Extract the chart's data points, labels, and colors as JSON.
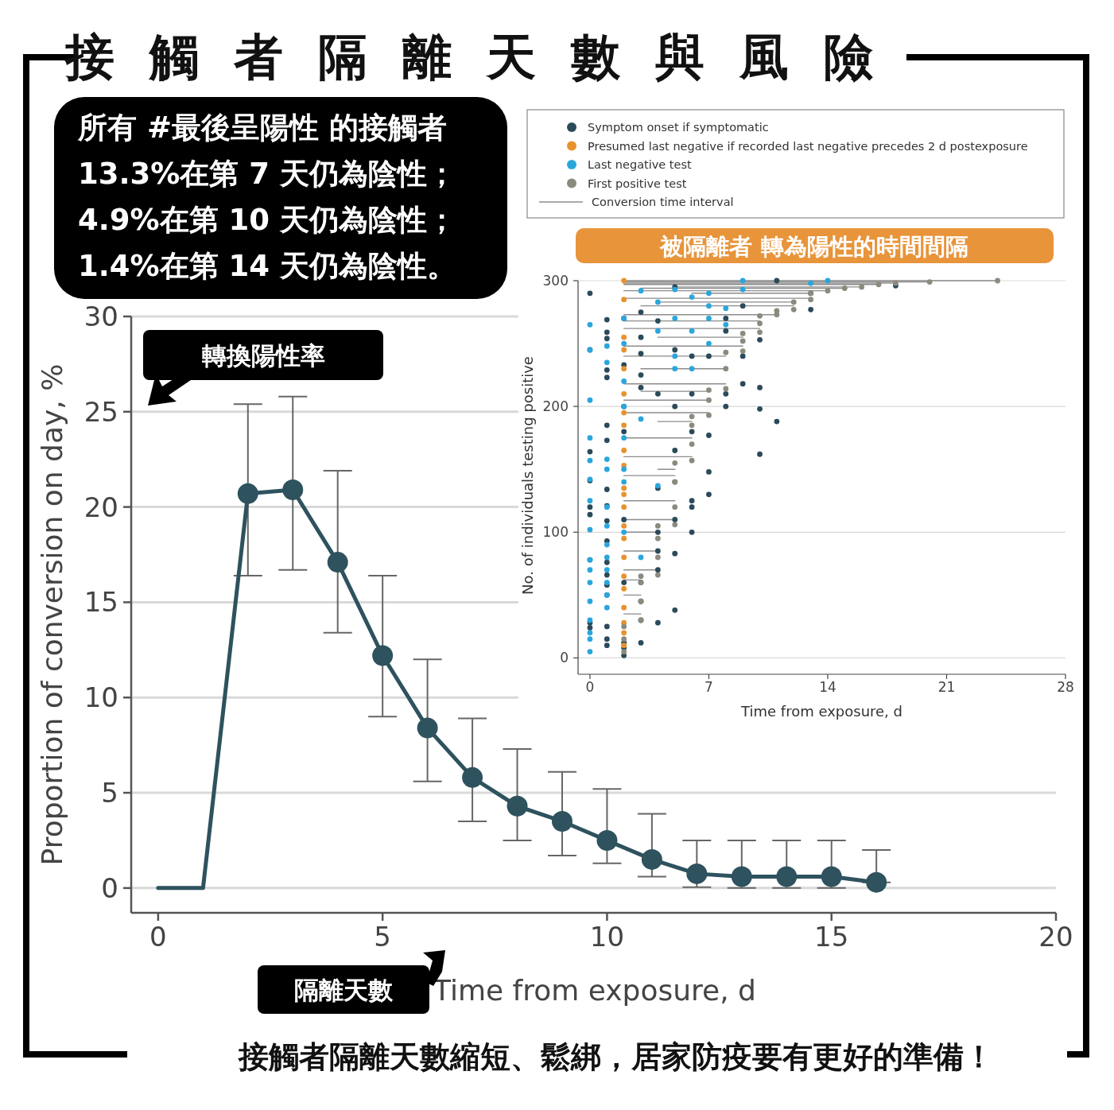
{
  "chart_data": [
    {
      "type": "line",
      "title": "接觸者隔離天數與風險",
      "xlabel": "Time from exposure, d",
      "ylabel": "Proportion of conversion on day, %",
      "color": "#2e525e",
      "marker": "circle",
      "grid": "y",
      "xlim": [
        -0.6,
        20
      ],
      "ylim": [
        -1.3,
        30
      ],
      "xticks": [
        0,
        5,
        10,
        15,
        20
      ],
      "yticks": [
        0,
        5,
        10,
        15,
        20,
        25,
        30
      ],
      "x": [
        0,
        1,
        2,
        3,
        4,
        5,
        6,
        7,
        8,
        9,
        10,
        11,
        12,
        13,
        14,
        15,
        16
      ],
      "values": [
        0,
        0,
        20.7,
        20.9,
        17.1,
        12.2,
        8.4,
        5.8,
        4.3,
        3.5,
        2.5,
        1.5,
        0.75,
        0.6,
        0.6,
        0.6,
        0.3
      ],
      "errors": [
        null,
        null,
        [
          16.4,
          25.4
        ],
        [
          16.7,
          25.8
        ],
        [
          13.4,
          21.9
        ],
        [
          9.0,
          16.4
        ],
        [
          5.6,
          12.0
        ],
        [
          3.5,
          8.9
        ],
        [
          2.5,
          7.3
        ],
        [
          1.7,
          6.1
        ],
        [
          1.3,
          5.2
        ],
        [
          0.6,
          3.9
        ],
        [
          0.05,
          2.5
        ],
        [
          0,
          2.5
        ],
        [
          0,
          2.5
        ],
        [
          0,
          2.5
        ],
        [
          0.3,
          2.0
        ]
      ],
      "annotations": [
        "所有 #最後呈陽性 的接觸者",
        "13.3%在第 7 天仍為陰性；",
        "4.9%在第 10 天仍為陰性；",
        "1.4%在第 14 天仍為陰性。",
        "轉換陽性率",
        "隔離天數",
        "接觸者隔離天數縮短、鬆綁，居家防疫要有更好的準備！"
      ]
    },
    {
      "type": "scatter",
      "title": "被隔離者 轉為陽性的時間間隔",
      "xlabel": "Time from exposure, d",
      "ylabel": "No. of individuals testing positive",
      "grid": "y",
      "legend": "top",
      "xlim": [
        -0.7,
        28
      ],
      "ylim": [
        -13,
        300
      ],
      "xticks": [
        0,
        7,
        14,
        21,
        28
      ],
      "yticks": [
        0,
        100,
        200,
        300
      ],
      "series": [
        {
          "name": "Symptom onset if symptomatic",
          "color": "#2b4a5a",
          "marker": "circle",
          "x": [
            0,
            0,
            0,
            0,
            0,
            0,
            0,
            0,
            0,
            1,
            1,
            1,
            1,
            1,
            1,
            1,
            1,
            1,
            1,
            1,
            1,
            1,
            1,
            1,
            1,
            1,
            1,
            2,
            2,
            2,
            2,
            2,
            2,
            2,
            2,
            2,
            3,
            3,
            3,
            3,
            3,
            3,
            3,
            3,
            3,
            4,
            4,
            4,
            4,
            4,
            4,
            4,
            5,
            5,
            5,
            5,
            5,
            5,
            5,
            5,
            6,
            6,
            6,
            6,
            6,
            6,
            7,
            7,
            7,
            7,
            8,
            8,
            8,
            8,
            9,
            9,
            9,
            10,
            10,
            10,
            10,
            11,
            11,
            13,
            13,
            18
          ],
          "values": [
            290,
            245,
            164,
            141,
            120,
            114,
            78,
            28,
            24,
            269,
            259,
            254,
            229,
            223,
            185,
            173,
            134,
            121,
            109,
            93,
            76,
            66,
            58,
            50,
            25,
            15,
            10,
            2,
            8,
            12,
            60,
            110,
            180,
            200,
            233,
            270,
            12,
            30,
            45,
            60,
            215,
            225,
            242,
            255,
            275,
            28,
            70,
            85,
            100,
            135,
            210,
            268,
            38,
            83,
            110,
            140,
            165,
            200,
            245,
            295,
            100,
            120,
            125,
            180,
            210,
            240,
            130,
            148,
            177,
            240,
            200,
            210,
            260,
            270,
            218,
            240,
            280,
            162,
            198,
            215,
            253,
            188,
            300,
            277,
            290,
            296
          ]
        },
        {
          "name": "Presumed last negative if recorded last negative precedes 2 d postexposure",
          "color": "#e8922e",
          "marker": "circle",
          "x": [
            2,
            2,
            2,
            2,
            2,
            2,
            2,
            2,
            2,
            2,
            2,
            2,
            2,
            2,
            2,
            2,
            2,
            2,
            2,
            2,
            2,
            2
          ],
          "values": [
            10,
            20,
            28,
            40,
            55,
            65,
            80,
            95,
            105,
            120,
            130,
            135,
            153,
            165,
            185,
            195,
            210,
            230,
            245,
            255,
            285,
            300
          ]
        },
        {
          "name": "Last negative test",
          "color": "#2aa6dc",
          "marker": "circle",
          "x": [
            0,
            0,
            0,
            0,
            0,
            0,
            0,
            0,
            0,
            0,
            0,
            0,
            0,
            0,
            0,
            0,
            1,
            1,
            1,
            1,
            1,
            1,
            1,
            1,
            1,
            1,
            1,
            1,
            2,
            2,
            2,
            2,
            2,
            2,
            2,
            2,
            3,
            3,
            3,
            4,
            4,
            4,
            5,
            5,
            5,
            5,
            6,
            6,
            6,
            7,
            7,
            7,
            7,
            8,
            8,
            9,
            9,
            13,
            14
          ],
          "values": [
            5,
            15,
            20,
            30,
            45,
            60,
            70,
            78,
            102,
            125,
            142,
            157,
            175,
            205,
            245,
            265,
            40,
            50,
            60,
            70,
            80,
            90,
            105,
            120,
            150,
            158,
            235,
            248,
            100,
            140,
            150,
            175,
            200,
            220,
            250,
            270,
            80,
            190,
            292,
            137,
            260,
            283,
            230,
            240,
            270,
            293,
            230,
            260,
            287,
            250,
            270,
            280,
            290,
            265,
            278,
            293,
            300,
            298,
            300
          ]
        },
        {
          "name": "First positive test",
          "color": "#8c8a7e",
          "marker": "circle",
          "x": [
            2,
            2,
            2,
            3,
            3,
            3,
            3,
            4,
            4,
            4,
            4,
            5,
            5,
            5,
            5,
            6,
            6,
            6,
            6,
            7,
            7,
            7,
            8,
            8,
            8,
            9,
            9,
            9,
            10,
            10,
            10,
            11,
            11,
            12,
            12,
            13,
            13,
            14,
            15,
            16,
            17,
            18,
            20,
            24
          ],
          "values": [
            5,
            15,
            25,
            30,
            45,
            60,
            65,
            66,
            80,
            95,
            105,
            106,
            120,
            140,
            155,
            157,
            170,
            185,
            192,
            193,
            205,
            213,
            214,
            230,
            243,
            244,
            252,
            258,
            259,
            266,
            272,
            273,
            276,
            277,
            283,
            285,
            290,
            292,
            294,
            295,
            297,
            298,
            299,
            300
          ]
        },
        {
          "name": "Conversion time interval",
          "type": "line",
          "color": "#8c8c8c",
          "x": [
            2,
            3
          ],
          "values": [
            35,
            35
          ]
        },
        {
          "type": "line",
          "color": "#8c8c8c",
          "x": [
            2,
            3
          ],
          "values": [
            50,
            50
          ]
        },
        {
          "type": "line",
          "color": "#8c8c8c",
          "x": [
            2,
            3
          ],
          "values": [
            62,
            62
          ]
        },
        {
          "type": "line",
          "color": "#8c8c8c",
          "x": [
            2,
            4
          ],
          "values": [
            70,
            70
          ]
        },
        {
          "type": "line",
          "color": "#8c8c8c",
          "x": [
            2,
            4
          ],
          "values": [
            85,
            85
          ]
        },
        {
          "type": "line",
          "color": "#8c8c8c",
          "x": [
            2,
            4
          ],
          "values": [
            100,
            100
          ]
        },
        {
          "type": "line",
          "color": "#8c8c8c",
          "x": [
            2,
            5
          ],
          "values": [
            110,
            110
          ]
        },
        {
          "type": "line",
          "color": "#8c8c8c",
          "x": [
            2,
            5
          ],
          "values": [
            125,
            125
          ]
        },
        {
          "type": "line",
          "color": "#8c8c8c",
          "x": [
            2,
            5
          ],
          "values": [
            145,
            145
          ]
        },
        {
          "type": "line",
          "color": "#8c8c8c",
          "x": [
            4,
            5
          ],
          "values": [
            150,
            150
          ]
        },
        {
          "type": "line",
          "color": "#8c8c8c",
          "x": [
            2,
            6
          ],
          "values": [
            160,
            160
          ]
        },
        {
          "type": "line",
          "color": "#8c8c8c",
          "x": [
            2,
            6
          ],
          "values": [
            175,
            175
          ]
        },
        {
          "type": "line",
          "color": "#8c8c8c",
          "x": [
            4,
            6
          ],
          "values": [
            188,
            188
          ]
        },
        {
          "type": "line",
          "color": "#8c8c8c",
          "x": [
            2,
            7
          ],
          "values": [
            195,
            195
          ]
        },
        {
          "type": "line",
          "color": "#8c8c8c",
          "x": [
            2,
            7
          ],
          "values": [
            205,
            205
          ]
        },
        {
          "type": "line",
          "color": "#8c8c8c",
          "x": [
            3,
            7
          ],
          "values": [
            212,
            212
          ]
        },
        {
          "type": "line",
          "color": "#8c8c8c",
          "x": [
            2,
            8
          ],
          "values": [
            218,
            218
          ]
        },
        {
          "type": "line",
          "color": "#8c8c8c",
          "x": [
            3,
            8
          ],
          "values": [
            230,
            230
          ]
        },
        {
          "type": "line",
          "color": "#8c8c8c",
          "x": [
            2,
            8
          ],
          "values": [
            240,
            240
          ]
        },
        {
          "type": "line",
          "color": "#8c8c8c",
          "x": [
            2,
            9
          ],
          "values": [
            248,
            248
          ]
        },
        {
          "type": "line",
          "color": "#8c8c8c",
          "x": [
            4,
            9
          ],
          "values": [
            255,
            255
          ]
        },
        {
          "type": "line",
          "color": "#8c8c8c",
          "x": [
            2,
            10
          ],
          "values": [
            262,
            262
          ]
        },
        {
          "type": "line",
          "color": "#8c8c8c",
          "x": [
            2,
            10
          ],
          "values": [
            268,
            268
          ]
        },
        {
          "type": "line",
          "color": "#8c8c8c",
          "x": [
            2,
            11
          ],
          "values": [
            273,
            273
          ]
        },
        {
          "type": "line",
          "color": "#8c8c8c",
          "x": [
            3,
            12
          ],
          "values": [
            280,
            280
          ]
        },
        {
          "type": "line",
          "color": "#8c8c8c",
          "x": [
            4,
            12
          ],
          "values": [
            283,
            283
          ]
        },
        {
          "type": "line",
          "color": "#8c8c8c",
          "x": [
            2,
            13
          ],
          "values": [
            286,
            286
          ]
        },
        {
          "type": "line",
          "color": "#8c8c8c",
          "x": [
            6,
            13
          ],
          "values": [
            290,
            290
          ]
        },
        {
          "type": "line",
          "color": "#8c8c8c",
          "x": [
            2,
            14
          ],
          "values": [
            292,
            292
          ]
        },
        {
          "type": "line",
          "color": "#8c8c8c",
          "x": [
            3,
            15
          ],
          "values": [
            294,
            294
          ]
        },
        {
          "type": "line",
          "color": "#8c8c8c",
          "x": [
            5,
            16
          ],
          "values": [
            295,
            295
          ]
        },
        {
          "type": "line",
          "color": "#8c8c8c",
          "x": [
            2,
            17
          ],
          "values": [
            297,
            297
          ]
        },
        {
          "type": "line",
          "color": "#8c8c8c",
          "x": [
            2,
            18
          ],
          "values": [
            298,
            298
          ]
        },
        {
          "type": "line",
          "color": "#8c8c8c",
          "x": [
            2,
            20
          ],
          "values": [
            299,
            299
          ]
        },
        {
          "type": "line",
          "color": "#8c8c8c",
          "x": [
            2,
            24
          ],
          "values": [
            300,
            300
          ]
        }
      ]
    }
  ]
}
